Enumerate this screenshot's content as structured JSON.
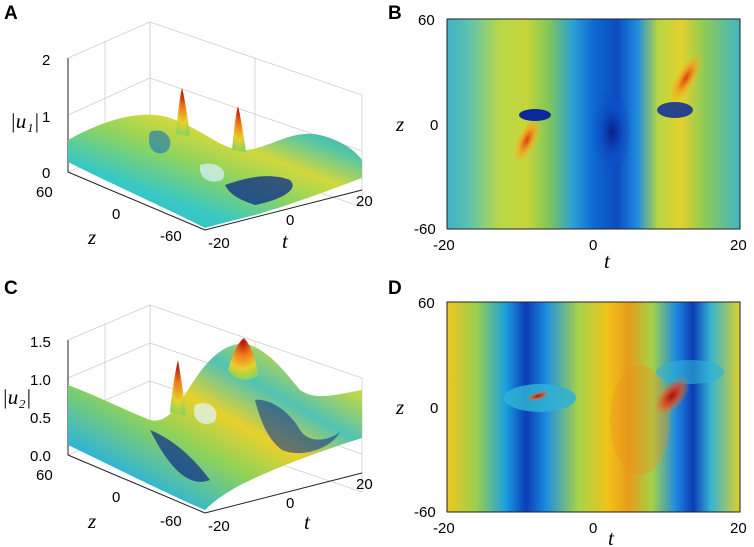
{
  "chart_data": [
    {
      "panel": "A",
      "type": "surface3d",
      "zlabel": "|u₁|",
      "xlabel": "t",
      "ylabel": "z",
      "x_ticks": [
        "-20",
        "0",
        "20"
      ],
      "y_ticks": [
        "-60",
        "0",
        "60"
      ],
      "z_ticks": [
        "0",
        "1",
        "2"
      ],
      "xlim": [
        -20,
        20
      ],
      "ylim": [
        -60,
        60
      ],
      "zlim": [
        0,
        2
      ]
    },
    {
      "panel": "B",
      "type": "heatmap",
      "xlabel": "t",
      "ylabel": "z",
      "x_ticks": [
        "-20",
        "0",
        "20"
      ],
      "y_ticks": [
        "60",
        "0",
        "-60"
      ],
      "xlim": [
        -20,
        20
      ],
      "ylim": [
        -60,
        60
      ]
    },
    {
      "panel": "C",
      "type": "surface3d",
      "zlabel": "|u₂|",
      "xlabel": "t",
      "ylabel": "z",
      "x_ticks": [
        "-20",
        "0",
        "20"
      ],
      "y_ticks": [
        "-60",
        "0",
        "60"
      ],
      "z_ticks": [
        "0.0",
        "0.5",
        "1.0",
        "1.5"
      ],
      "xlim": [
        -20,
        20
      ],
      "ylim": [
        -60,
        60
      ],
      "zlim": [
        0,
        1.5
      ]
    },
    {
      "panel": "D",
      "type": "heatmap",
      "xlabel": "t",
      "ylabel": "z",
      "x_ticks": [
        "-20",
        "0",
        "20"
      ],
      "y_ticks": [
        "60",
        "0",
        "-60"
      ],
      "xlim": [
        -20,
        20
      ],
      "ylim": [
        -60,
        60
      ]
    }
  ]
}
